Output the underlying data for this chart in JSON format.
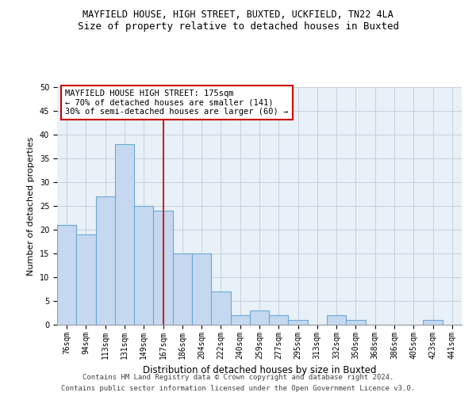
{
  "title1": "MAYFIELD HOUSE, HIGH STREET, BUXTED, UCKFIELD, TN22 4LA",
  "title2": "Size of property relative to detached houses in Buxted",
  "xlabel": "Distribution of detached houses by size in Buxted",
  "ylabel": "Number of detached properties",
  "categories": [
    "76sqm",
    "94sqm",
    "113sqm",
    "131sqm",
    "149sqm",
    "167sqm",
    "186sqm",
    "204sqm",
    "222sqm",
    "240sqm",
    "259sqm",
    "277sqm",
    "295sqm",
    "313sqm",
    "332sqm",
    "350sqm",
    "368sqm",
    "386sqm",
    "405sqm",
    "423sqm",
    "441sqm"
  ],
  "values": [
    21,
    19,
    27,
    38,
    25,
    24,
    15,
    15,
    7,
    2,
    3,
    2,
    1,
    0,
    2,
    1,
    0,
    0,
    0,
    1,
    0
  ],
  "bar_color": "#c5d8f0",
  "bar_edge_color": "#6aaad4",
  "highlight_index": 5,
  "annotation_line_color": "#cc2222",
  "annotation_text_line1": "MAYFIELD HOUSE HIGH STREET: 175sqm",
  "annotation_text_line2": "← 70% of detached houses are smaller (141)",
  "annotation_text_line3": "30% of semi-detached houses are larger (60) →",
  "annotation_box_color": "#ffffff",
  "annotation_box_edge": "#cc0000",
  "ylim": [
    0,
    50
  ],
  "yticks": [
    0,
    5,
    10,
    15,
    20,
    25,
    30,
    35,
    40,
    45,
    50
  ],
  "footer1": "Contains HM Land Registry data © Crown copyright and database right 2024.",
  "footer2": "Contains public sector information licensed under the Open Government Licence v3.0.",
  "background_color": "#ffffff",
  "plot_bg_color": "#e8f0f8",
  "grid_color": "#c8d0dc",
  "title1_fontsize": 8.5,
  "title2_fontsize": 9,
  "ylabel_fontsize": 8,
  "xlabel_fontsize": 8.5,
  "tick_fontsize": 7,
  "annotation_fontsize": 7.5,
  "footer_fontsize": 6.5
}
